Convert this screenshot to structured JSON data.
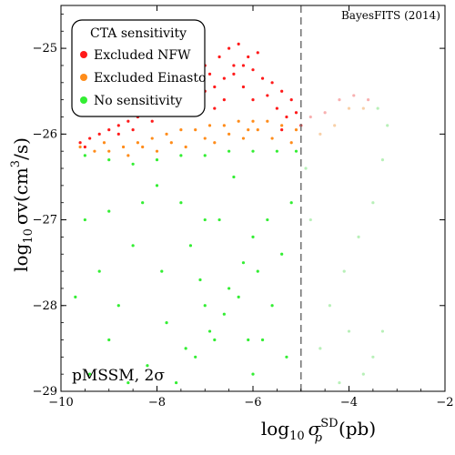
{
  "chart_data": {
    "type": "scatter",
    "title": "",
    "watermark": "BayesFITS (2014)",
    "annotation": "pMSSM, 2σ",
    "xlabel": {
      "prefix": "log",
      "sub": "10",
      "symbol": "σ",
      "sup": "SD",
      "subscript": "p",
      "unit": "(pb)"
    },
    "ylabel": {
      "prefix": "log",
      "sub": "10",
      "symbol": "σv(cm",
      "sup": "3",
      "unit": "/s)"
    },
    "xlim": [
      -10,
      -2
    ],
    "ylim": [
      -29,
      -24.5
    ],
    "x_ticks": [
      -10,
      -8,
      -6,
      -4,
      -2
    ],
    "x_tick_labels": [
      "−10",
      "−8",
      "−6",
      "−4",
      "−2"
    ],
    "y_ticks": [
      -29,
      -28,
      -27,
      -26,
      -25
    ],
    "y_tick_labels": [
      "−29",
      "−28",
      "−27",
      "−26",
      "−25"
    ],
    "grid": false,
    "vline_x": -5,
    "legend": {
      "title": "CTA sensitivity",
      "placement": "top-left",
      "entries": [
        {
          "label": "Excluded NFW",
          "color": "#ff1a1a"
        },
        {
          "label": "Excluded Einasto",
          "color": "#ff8c1a"
        },
        {
          "label": "No sensitivity",
          "color": "#33ee33"
        }
      ]
    },
    "faded_colors": {
      "Excluded NFW": "#f8b0b0",
      "Excluded Einasto": "#f8d0a8",
      "No sensitivity": "#b8f0b8"
    },
    "series": [
      {
        "name": "Excluded NFW",
        "color": "#ff1a1a",
        "points": [
          [
            -9.6,
            -26.1
          ],
          [
            -9.4,
            -26.05
          ],
          [
            -9.2,
            -26.0
          ],
          [
            -9.0,
            -25.95
          ],
          [
            -8.8,
            -25.9
          ],
          [
            -8.6,
            -25.85
          ],
          [
            -8.4,
            -25.8
          ],
          [
            -8.2,
            -25.75
          ],
          [
            -8.0,
            -25.75
          ],
          [
            -7.8,
            -25.7
          ],
          [
            -7.6,
            -25.65
          ],
          [
            -7.4,
            -25.6
          ],
          [
            -7.2,
            -25.55
          ],
          [
            -7.0,
            -25.5
          ],
          [
            -6.8,
            -25.45
          ],
          [
            -6.6,
            -25.35
          ],
          [
            -6.4,
            -25.3
          ],
          [
            -6.2,
            -25.2
          ],
          [
            -6.0,
            -25.25
          ],
          [
            -5.8,
            -25.35
          ],
          [
            -5.6,
            -25.4
          ],
          [
            -5.4,
            -25.5
          ],
          [
            -5.2,
            -25.6
          ],
          [
            -7.0,
            -25.2
          ],
          [
            -6.7,
            -25.1
          ],
          [
            -6.5,
            -25.0
          ],
          [
            -6.3,
            -24.95
          ],
          [
            -6.1,
            -25.1
          ],
          [
            -5.9,
            -25.05
          ],
          [
            -6.4,
            -25.2
          ],
          [
            -7.5,
            -25.4
          ],
          [
            -7.2,
            -25.3
          ],
          [
            -6.9,
            -25.3
          ],
          [
            -6.0,
            -25.6
          ],
          [
            -5.5,
            -25.7
          ],
          [
            -5.3,
            -25.8
          ],
          [
            -8.5,
            -25.95
          ],
          [
            -8.8,
            -26.0
          ],
          [
            -9.5,
            -26.15
          ],
          [
            -7.9,
            -25.55
          ],
          [
            -7.6,
            -25.5
          ],
          [
            -6.6,
            -25.6
          ],
          [
            -6.2,
            -25.45
          ],
          [
            -5.7,
            -25.55
          ],
          [
            -5.1,
            -25.75
          ],
          [
            -6.8,
            -25.7
          ],
          [
            -7.3,
            -25.75
          ],
          [
            -8.1,
            -25.85
          ],
          [
            -5.0,
            -25.9
          ],
          [
            -5.4,
            -25.95
          ]
        ]
      },
      {
        "name": "Excluded Einasto",
        "color": "#ff8c1a",
        "points": [
          [
            -9.6,
            -26.15
          ],
          [
            -9.3,
            -26.2
          ],
          [
            -9.0,
            -26.2
          ],
          [
            -8.7,
            -26.15
          ],
          [
            -8.4,
            -26.1
          ],
          [
            -8.1,
            -26.05
          ],
          [
            -7.8,
            -26.0
          ],
          [
            -7.5,
            -25.95
          ],
          [
            -7.2,
            -25.95
          ],
          [
            -6.9,
            -25.9
          ],
          [
            -6.6,
            -25.9
          ],
          [
            -6.3,
            -25.85
          ],
          [
            -6.0,
            -25.85
          ],
          [
            -5.7,
            -25.85
          ],
          [
            -5.4,
            -25.9
          ],
          [
            -5.1,
            -25.95
          ],
          [
            -8.6,
            -26.25
          ],
          [
            -8.0,
            -26.2
          ],
          [
            -7.4,
            -26.15
          ],
          [
            -6.8,
            -26.1
          ],
          [
            -6.2,
            -26.05
          ],
          [
            -5.6,
            -26.05
          ],
          [
            -5.2,
            -26.1
          ],
          [
            -7.0,
            -26.05
          ],
          [
            -7.7,
            -26.1
          ],
          [
            -8.3,
            -26.15
          ],
          [
            -6.5,
            -26.0
          ],
          [
            -5.9,
            -25.95
          ],
          [
            -9.1,
            -26.1
          ],
          [
            -6.1,
            -25.95
          ]
        ]
      },
      {
        "name": "No sensitivity",
        "color": "#33ee33",
        "points": [
          [
            -9.5,
            -26.25
          ],
          [
            -9.0,
            -26.3
          ],
          [
            -8.5,
            -26.35
          ],
          [
            -8.0,
            -26.3
          ],
          [
            -7.5,
            -26.25
          ],
          [
            -7.0,
            -26.25
          ],
          [
            -6.5,
            -26.2
          ],
          [
            -6.0,
            -26.2
          ],
          [
            -5.5,
            -26.2
          ],
          [
            -5.1,
            -26.2
          ],
          [
            -8.0,
            -26.6
          ],
          [
            -7.5,
            -26.8
          ],
          [
            -7.0,
            -27.0
          ],
          [
            -9.0,
            -26.9
          ],
          [
            -8.5,
            -27.3
          ],
          [
            -9.2,
            -27.6
          ],
          [
            -8.8,
            -28.0
          ],
          [
            -9.0,
            -28.4
          ],
          [
            -8.2,
            -28.7
          ],
          [
            -7.6,
            -28.9
          ],
          [
            -7.2,
            -28.6
          ],
          [
            -6.9,
            -28.3
          ],
          [
            -7.0,
            -28.0
          ],
          [
            -6.5,
            -27.8
          ],
          [
            -6.2,
            -27.5
          ],
          [
            -6.0,
            -27.2
          ],
          [
            -5.7,
            -27.0
          ],
          [
            -6.8,
            -28.4
          ],
          [
            -6.6,
            -28.1
          ],
          [
            -6.3,
            -27.9
          ],
          [
            -7.4,
            -28.5
          ],
          [
            -7.8,
            -28.2
          ],
          [
            -5.6,
            -28.0
          ],
          [
            -5.3,
            -28.6
          ],
          [
            -6.0,
            -28.8
          ],
          [
            -5.8,
            -28.4
          ],
          [
            -9.5,
            -27.0
          ],
          [
            -9.7,
            -27.9
          ],
          [
            -7.9,
            -27.6
          ],
          [
            -5.4,
            -27.4
          ],
          [
            -5.2,
            -26.8
          ],
          [
            -6.4,
            -26.5
          ],
          [
            -8.3,
            -26.8
          ],
          [
            -7.3,
            -27.3
          ],
          [
            -6.7,
            -27.0
          ],
          [
            -8.6,
            -28.9
          ],
          [
            -9.4,
            -28.8
          ],
          [
            -6.1,
            -28.4
          ],
          [
            -7.1,
            -27.7
          ],
          [
            -5.9,
            -27.6
          ]
        ]
      }
    ],
    "faded_points": [
      [
        -4.8,
        -25.8,
        "Excluded NFW"
      ],
      [
        -4.5,
        -25.75,
        "Excluded NFW"
      ],
      [
        -4.2,
        -25.6,
        "Excluded NFW"
      ],
      [
        -3.9,
        -25.55,
        "Excluded NFW"
      ],
      [
        -3.6,
        -25.6,
        "Excluded NFW"
      ],
      [
        -4.6,
        -26.0,
        "Excluded Einasto"
      ],
      [
        -4.3,
        -25.9,
        "Excluded Einasto"
      ],
      [
        -4.0,
        -25.7,
        "Excluded Einasto"
      ],
      [
        -3.7,
        -25.7,
        "Excluded Einasto"
      ],
      [
        -3.4,
        -25.7,
        "No sensitivity"
      ],
      [
        -3.2,
        -25.9,
        "No sensitivity"
      ],
      [
        -3.3,
        -26.3,
        "No sensitivity"
      ],
      [
        -3.5,
        -26.8,
        "No sensitivity"
      ],
      [
        -3.8,
        -27.2,
        "No sensitivity"
      ],
      [
        -4.1,
        -27.6,
        "No sensitivity"
      ],
      [
        -4.4,
        -28.0,
        "No sensitivity"
      ],
      [
        -4.6,
        -28.5,
        "No sensitivity"
      ],
      [
        -4.2,
        -28.9,
        "No sensitivity"
      ],
      [
        -3.7,
        -28.8,
        "No sensitivity"
      ],
      [
        -3.3,
        -28.3,
        "No sensitivity"
      ],
      [
        -3.5,
        -28.6,
        "No sensitivity"
      ],
      [
        -4.8,
        -27.0,
        "No sensitivity"
      ],
      [
        -4.9,
        -26.4,
        "No sensitivity"
      ],
      [
        -4.0,
        -28.3,
        "No sensitivity"
      ]
    ]
  }
}
